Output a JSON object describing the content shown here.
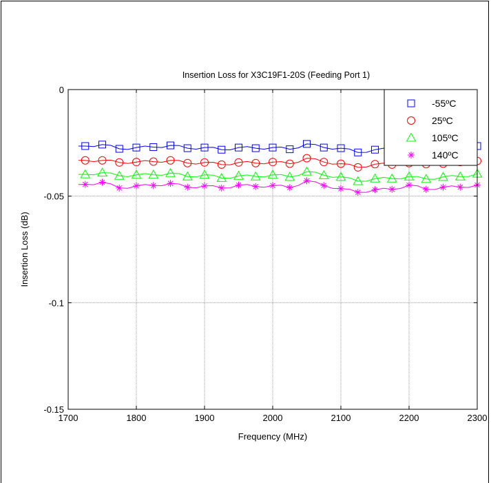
{
  "chart_data": {
    "type": "line",
    "title": "Insertion Loss for X3C19F1-20S (Feeding Port 1)",
    "xlabel": "Frequency (MHz)",
    "ylabel": "Insertion Loss (dB)",
    "xlim": [
      1700,
      2300
    ],
    "ylim": [
      -0.15,
      0
    ],
    "xticks": [
      1700,
      1800,
      1900,
      2000,
      2100,
      2200,
      2300
    ],
    "yticks": [
      -0.15,
      -0.1,
      -0.05,
      0
    ],
    "xtick_labels": [
      "1700",
      "1800",
      "1900",
      "2000",
      "2100",
      "2200",
      "2300"
    ],
    "ytick_labels": [
      "-0.15",
      "-0.1",
      "-0.05",
      "0"
    ],
    "grid": true,
    "legend_position": "top-right",
    "x": [
      1725,
      1750,
      1775,
      1800,
      1825,
      1850,
      1875,
      1900,
      1925,
      1950,
      1975,
      2000,
      2025,
      2050,
      2075,
      2100,
      2125,
      2150,
      2175,
      2200,
      2225,
      2250,
      2275,
      2300
    ],
    "series": [
      {
        "name": "-55ºC",
        "color": "#0000ff",
        "marker": "square",
        "values": [
          -0.0265,
          -0.0258,
          -0.0278,
          -0.0272,
          -0.027,
          -0.0262,
          -0.0275,
          -0.0272,
          -0.0282,
          -0.0272,
          -0.0275,
          -0.0272,
          -0.028,
          -0.0255,
          -0.0272,
          -0.0275,
          -0.0295,
          -0.0282,
          -0.028,
          -0.0275,
          -0.0278,
          -0.028,
          -0.027,
          -0.0265
        ]
      },
      {
        "name": "25ºC",
        "color": "#ff0000",
        "marker": "circle",
        "values": [
          -0.0332,
          -0.0332,
          -0.0342,
          -0.034,
          -0.0338,
          -0.0332,
          -0.0345,
          -0.0342,
          -0.0352,
          -0.0342,
          -0.0345,
          -0.034,
          -0.0348,
          -0.0322,
          -0.034,
          -0.0348,
          -0.0365,
          -0.035,
          -0.0352,
          -0.0345,
          -0.035,
          -0.0348,
          -0.034,
          -0.0335
        ]
      },
      {
        "name": "105ºC",
        "color": "#00ff00",
        "marker": "triangle",
        "values": [
          -0.0398,
          -0.039,
          -0.0405,
          -0.04,
          -0.04,
          -0.0392,
          -0.0408,
          -0.04,
          -0.0415,
          -0.0405,
          -0.0408,
          -0.04,
          -0.041,
          -0.0385,
          -0.0402,
          -0.041,
          -0.043,
          -0.0418,
          -0.0418,
          -0.0408,
          -0.042,
          -0.041,
          -0.0408,
          -0.0395
        ]
      },
      {
        "name": "140ºC",
        "color": "#ff00ff",
        "marker": "star",
        "values": [
          -0.0445,
          -0.0435,
          -0.0462,
          -0.0452,
          -0.045,
          -0.044,
          -0.0458,
          -0.0452,
          -0.0462,
          -0.0448,
          -0.0455,
          -0.045,
          -0.046,
          -0.0428,
          -0.045,
          -0.0465,
          -0.0482,
          -0.047,
          -0.0468,
          -0.0448,
          -0.0468,
          -0.0458,
          -0.0458,
          -0.0448
        ]
      }
    ]
  }
}
